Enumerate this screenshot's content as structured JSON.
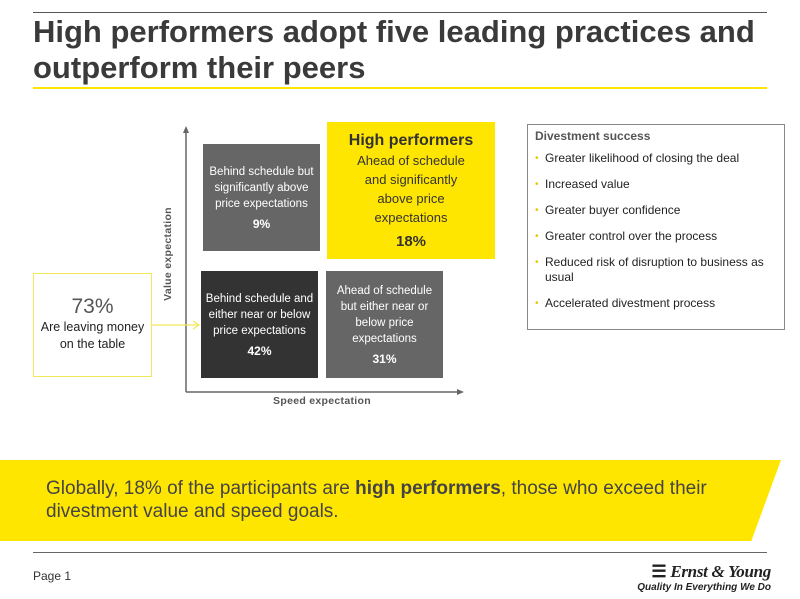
{
  "title": "High performers adopt five leading practices and outperform their peers",
  "matrix": {
    "y_axis": "Value expectation",
    "x_axis": "Speed expectation",
    "top_left": {
      "text": "Behind schedule but significantly above price expectations",
      "pct": "9%"
    },
    "top_right": {
      "heading": "High performers",
      "text": "Ahead of schedule and significantly above price expectations",
      "pct": "18%"
    },
    "bottom_left": {
      "text": "Behind schedule and either near or below price expectations",
      "pct": "42%"
    },
    "bottom_right": {
      "text": "Ahead of schedule but either near or below price expectations",
      "pct": "31%"
    }
  },
  "callout": {
    "pct": "73%",
    "text": "Are leaving money on the table"
  },
  "success": {
    "title": "Divestment success",
    "items": [
      "Greater likelihood of closing the deal",
      "Increased value",
      "Greater buyer confidence",
      "Greater control over the process",
      "Reduced risk of disruption to business as usual",
      "Accelerated divestment process"
    ]
  },
  "banner": {
    "pre": "Globally, 18% of the participants are ",
    "bold": "high performers",
    "post": ", those who exceed their divestment value and speed goals."
  },
  "footer": {
    "page": "Page 1",
    "logo": "Ernst & Young",
    "tagline": "Quality In Everything We Do"
  },
  "colors": {
    "accent": "#ffe600",
    "dark": "#333333",
    "gray": "#666666"
  }
}
